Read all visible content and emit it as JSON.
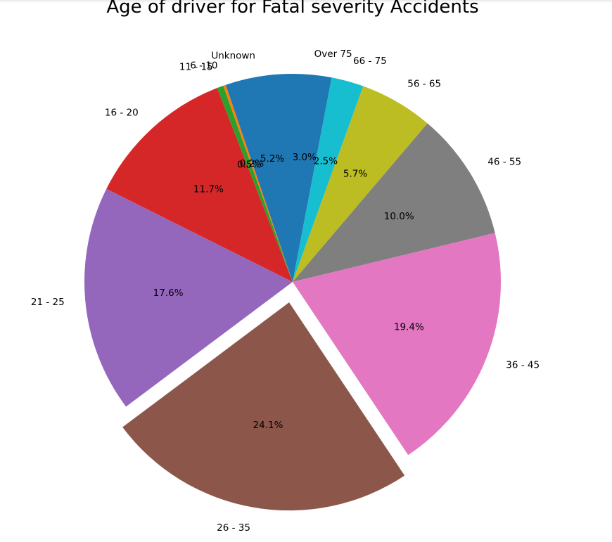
{
  "chart_data": {
    "type": "pie",
    "title": "Age of driver for Fatal severity Accidents",
    "start_angle_deg": 90,
    "direction": "clockwise",
    "exploded_slice": "26 - 35",
    "slices": [
      {
        "label": "Over 75",
        "value": 3.0,
        "pct_label": "3.0%",
        "color": "#1f77b4"
      },
      {
        "label": "66 - 75",
        "value": 2.5,
        "pct_label": "2.5%",
        "color": "#17becf"
      },
      {
        "label": "56 - 65",
        "value": 5.7,
        "pct_label": "5.7%",
        "color": "#bcbd22"
      },
      {
        "label": "46 - 55",
        "value": 10.0,
        "pct_label": "10.0%",
        "color": "#7f7f7f"
      },
      {
        "label": "36 - 45",
        "value": 19.4,
        "pct_label": "19.4%",
        "color": "#e377c2"
      },
      {
        "label": "26 - 35",
        "value": 24.1,
        "pct_label": "24.1%",
        "color": "#8c564b"
      },
      {
        "label": "21 - 25",
        "value": 17.6,
        "pct_label": "17.6%",
        "color": "#9467bd"
      },
      {
        "label": "16 - 20",
        "value": 11.7,
        "pct_label": "11.7%",
        "color": "#d62728"
      },
      {
        "label": "11 - 15",
        "value": 0.5,
        "pct_label": "0.5%",
        "color": "#2ca02c"
      },
      {
        "label": "6 - 10",
        "value": 0.2,
        "pct_label": "0.2%",
        "color": "#ff7f0e"
      },
      {
        "label": "Unknown",
        "value": 5.2,
        "pct_label": "5.2%",
        "color": "#1f77b4"
      }
    ]
  }
}
